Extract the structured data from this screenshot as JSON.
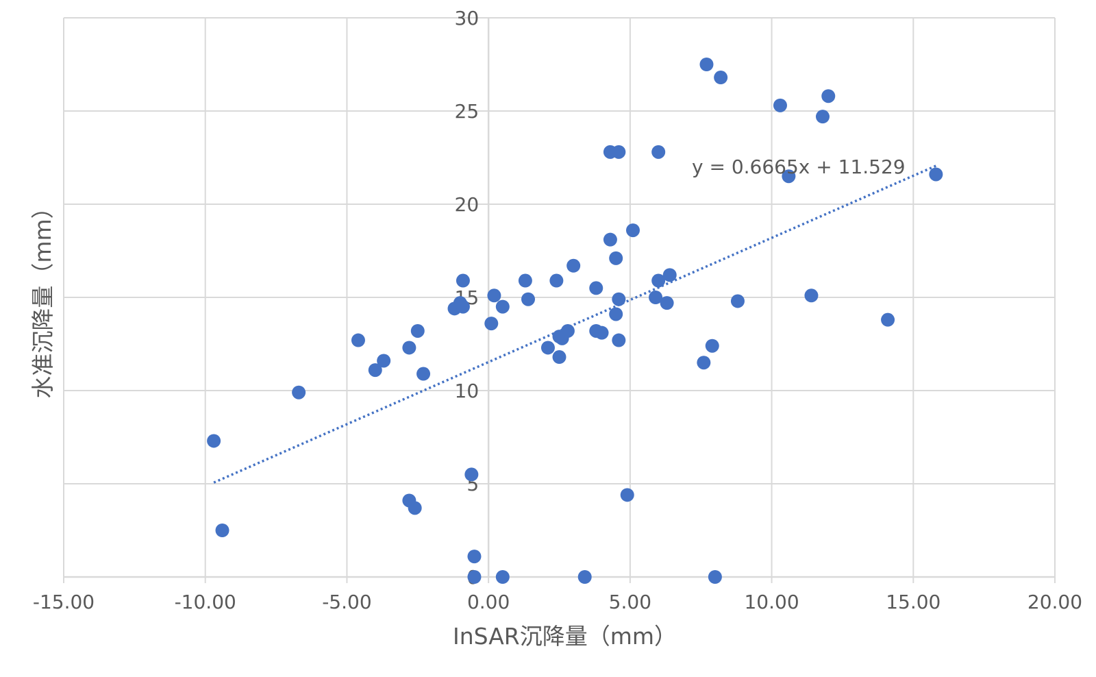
{
  "chart_data": {
    "type": "scatter",
    "title": "",
    "xlabel": "InSAR沉降量（mm）",
    "ylabel": "水准沉降量（mm）",
    "xlim": [
      -15,
      20
    ],
    "ylim": [
      0,
      30
    ],
    "x_ticks": [
      -15,
      -10,
      -5,
      0,
      5,
      10,
      15,
      20
    ],
    "x_tick_labels": [
      "-15.00",
      "-10.00",
      "-5.00",
      "0.00",
      "5.00",
      "10.00",
      "15.00",
      "20.00"
    ],
    "y_ticks": [
      0,
      5,
      10,
      15,
      20,
      25,
      30
    ],
    "y_tick_labels": [
      "0",
      "5",
      "10",
      "15",
      "20",
      "25",
      "30"
    ],
    "grid": true,
    "legend": "none",
    "colors": {
      "points": "#4472c4",
      "trendline": "#4472c4",
      "grid": "#d9d9d9",
      "text": "#595959"
    },
    "series": [
      {
        "x": [
          -9.7,
          -9.4,
          -6.7,
          -4.6,
          -4.0,
          -3.7,
          -2.8,
          -2.8,
          -2.6,
          -2.5,
          -2.3,
          -1.2,
          -1.0,
          -0.9,
          -0.9,
          -0.5,
          -0.5,
          -0.6,
          0.1,
          0.2,
          0.5,
          0.5,
          1.3,
          1.4,
          2.1,
          2.4,
          2.5,
          2.5,
          2.6,
          2.8,
          3.0,
          3.4,
          3.8,
          3.8,
          4.0,
          4.3,
          4.3,
          4.5,
          4.5,
          4.6,
          4.6,
          4.6,
          4.9,
          5.1,
          5.9,
          6.0,
          6.0,
          6.3,
          6.4,
          7.6,
          7.7,
          7.9,
          8.0,
          8.2,
          8.8,
          10.3,
          10.6,
          11.4,
          11.8,
          12.0,
          14.1,
          15.8
        ],
        "y": [
          7.3,
          2.5,
          9.9,
          12.7,
          11.1,
          11.6,
          12.3,
          4.1,
          3.7,
          13.2,
          10.9,
          14.4,
          14.7,
          15.9,
          14.5,
          0.0,
          1.1,
          5.5,
          13.6,
          15.1,
          0.0,
          14.5,
          15.9,
          14.9,
          12.3,
          15.9,
          11.8,
          12.9,
          12.8,
          13.2,
          16.7,
          0.0,
          15.5,
          13.2,
          13.1,
          18.1,
          22.8,
          14.1,
          17.1,
          14.9,
          12.7,
          22.8,
          4.4,
          18.6,
          15.0,
          22.8,
          15.9,
          14.7,
          16.2,
          11.5,
          27.5,
          12.4,
          0.0,
          26.8,
          14.8,
          25.3,
          21.5,
          15.1,
          24.7,
          25.8,
          13.8,
          21.6
        ]
      }
    ],
    "trendline": {
      "type": "linear",
      "slope": 0.6665,
      "intercept": 11.529,
      "x_range": [
        -9.7,
        15.8
      ],
      "equation_label": "y = 0.6665x + 11.529"
    }
  }
}
